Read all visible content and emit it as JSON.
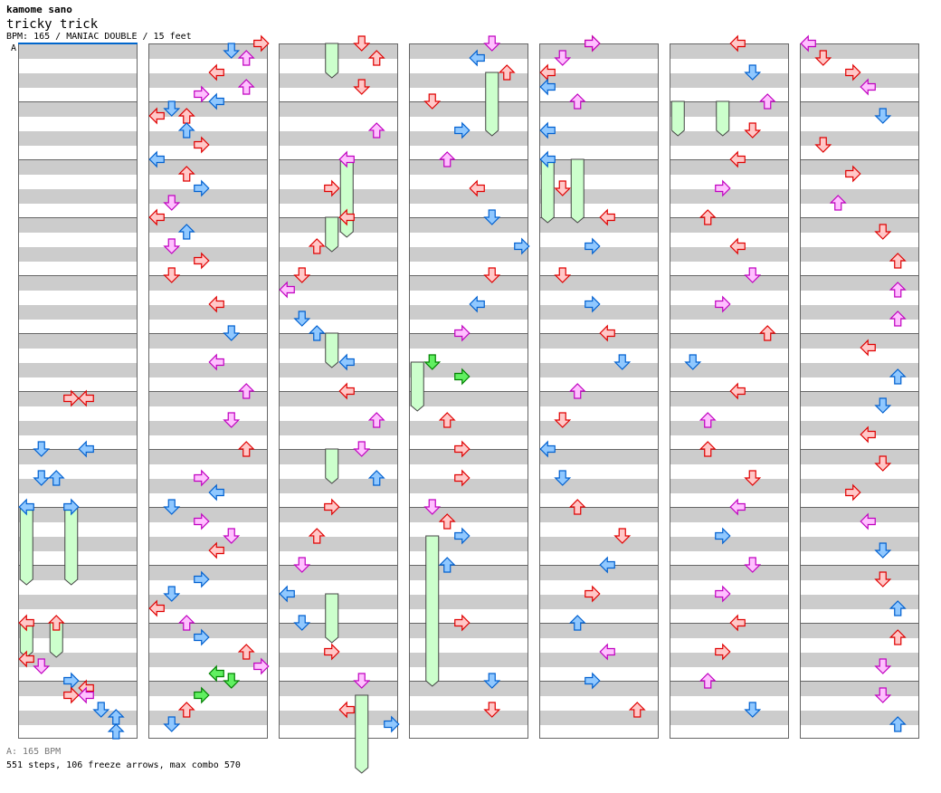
{
  "header": {
    "artist": "kamome sano",
    "title": "tricky trick",
    "info": "BPM: 165 / MANIAC DOUBLE / 15 feet",
    "section_label": "A"
  },
  "footer": {
    "bpm_note": "A: 165 BPM",
    "stats": "551 steps, 106 freeze arrows, max combo 570"
  },
  "colors": {
    "r": [
      "#ffc8c8",
      "#e00000"
    ],
    "b": [
      "#90c8ff",
      "#0060d0"
    ],
    "p": [
      "#ffc0ff",
      "#c000c0"
    ],
    "g": [
      "#60f060",
      "#008000"
    ],
    "freeze": [
      "#ccffcc",
      "#444444"
    ]
  },
  "chart_data": {
    "type": "stepchart",
    "columns": 7,
    "beats_per_column": 48,
    "lanes": [
      "L",
      "D",
      "U",
      "R",
      "L",
      "D",
      "U",
      "R"
    ],
    "notes": [
      [
        24.5,
        3,
        "r"
      ],
      [
        24.5,
        4,
        "r"
      ],
      [
        28,
        1,
        "b"
      ],
      [
        28,
        4,
        "b"
      ],
      [
        30,
        1,
        "b"
      ],
      [
        30,
        2,
        "b"
      ],
      [
        32,
        0,
        "b"
      ],
      [
        32,
        3,
        "b"
      ],
      [
        40,
        0,
        "r"
      ],
      [
        40,
        2,
        "r"
      ],
      [
        42.5,
        0,
        "r"
      ],
      [
        43,
        1,
        "p"
      ],
      [
        44,
        3,
        "b"
      ],
      [
        44.5,
        4,
        "r"
      ],
      [
        45,
        3,
        "r"
      ],
      [
        45,
        4,
        "p"
      ],
      [
        46,
        5,
        "b"
      ],
      [
        46.5,
        6,
        "b"
      ],
      [
        47.5,
        6,
        "b"
      ],
      [
        48,
        7,
        "r"
      ],
      [
        48.5,
        5,
        "b"
      ],
      [
        49,
        6,
        "p"
      ],
      [
        50,
        4,
        "r"
      ],
      [
        51,
        6,
        "p"
      ],
      [
        51.5,
        3,
        "p"
      ],
      [
        52,
        4,
        "b"
      ],
      [
        52.5,
        1,
        "b"
      ],
      [
        53,
        0,
        "r"
      ],
      [
        53,
        2,
        "r"
      ],
      [
        54,
        2,
        "b"
      ],
      [
        55,
        3,
        "r"
      ],
      [
        56,
        0,
        "b"
      ],
      [
        57,
        2,
        "r"
      ],
      [
        58,
        3,
        "b"
      ],
      [
        59,
        1,
        "p"
      ],
      [
        60,
        0,
        "r"
      ],
      [
        61,
        2,
        "b"
      ],
      [
        62,
        1,
        "p"
      ],
      [
        63,
        3,
        "r"
      ],
      [
        64,
        1,
        "r"
      ],
      [
        66,
        4,
        "r"
      ],
      [
        68,
        5,
        "b"
      ],
      [
        70,
        4,
        "p"
      ],
      [
        72,
        6,
        "p"
      ],
      [
        74,
        5,
        "p"
      ],
      [
        76,
        6,
        "r"
      ],
      [
        78,
        3,
        "p"
      ],
      [
        79,
        4,
        "b"
      ],
      [
        80,
        1,
        "b"
      ],
      [
        81,
        3,
        "p"
      ],
      [
        82,
        5,
        "p"
      ],
      [
        83,
        4,
        "r"
      ],
      [
        85,
        3,
        "b"
      ],
      [
        86,
        1,
        "b"
      ],
      [
        87,
        0,
        "r"
      ],
      [
        88,
        2,
        "p"
      ],
      [
        89,
        3,
        "b"
      ],
      [
        90,
        6,
        "r"
      ],
      [
        91,
        7,
        "p"
      ],
      [
        91.5,
        4,
        "g"
      ],
      [
        92,
        5,
        "g"
      ],
      [
        93,
        3,
        "g"
      ],
      [
        94,
        2,
        "r"
      ],
      [
        95,
        1,
        "b"
      ],
      [
        96,
        5,
        "r"
      ],
      [
        97,
        6,
        "r"
      ],
      [
        99,
        5,
        "r"
      ],
      [
        102,
        6,
        "p"
      ],
      [
        104,
        4,
        "p"
      ],
      [
        106,
        3,
        "r"
      ],
      [
        108,
        4,
        "r"
      ],
      [
        110,
        2,
        "r"
      ],
      [
        112,
        1,
        "r"
      ],
      [
        113,
        0,
        "p"
      ],
      [
        115,
        1,
        "b"
      ],
      [
        116,
        2,
        "b"
      ],
      [
        118,
        4,
        "b"
      ],
      [
        120,
        4,
        "r"
      ],
      [
        122,
        6,
        "p"
      ],
      [
        124,
        5,
        "p"
      ],
      [
        126,
        6,
        "b"
      ],
      [
        128,
        3,
        "r"
      ],
      [
        130,
        2,
        "r"
      ],
      [
        132,
        1,
        "p"
      ],
      [
        134,
        0,
        "b"
      ],
      [
        136,
        1,
        "b"
      ],
      [
        138,
        3,
        "r"
      ],
      [
        140,
        5,
        "p"
      ],
      [
        142,
        4,
        "r"
      ],
      [
        143,
        7,
        "b"
      ],
      [
        144,
        5,
        "p"
      ],
      [
        145,
        4,
        "b"
      ],
      [
        146,
        6,
        "r"
      ],
      [
        148,
        1,
        "r"
      ],
      [
        150,
        3,
        "b"
      ],
      [
        152,
        2,
        "p"
      ],
      [
        154,
        4,
        "r"
      ],
      [
        156,
        5,
        "b"
      ],
      [
        158,
        7,
        "b"
      ],
      [
        160,
        5,
        "r"
      ],
      [
        162,
        4,
        "b"
      ],
      [
        164,
        3,
        "p"
      ],
      [
        166,
        1,
        "g"
      ],
      [
        167,
        3,
        "g"
      ],
      [
        170,
        2,
        "r"
      ],
      [
        172,
        3,
        "r"
      ],
      [
        174,
        3,
        "r"
      ],
      [
        176,
        1,
        "p"
      ],
      [
        177,
        2,
        "r"
      ],
      [
        178,
        3,
        "b"
      ],
      [
        180,
        2,
        "b"
      ],
      [
        184,
        3,
        "r"
      ],
      [
        188,
        5,
        "b"
      ],
      [
        190,
        5,
        "r"
      ],
      [
        192,
        3,
        "r"
      ],
      [
        192,
        3,
        "p"
      ],
      [
        193,
        1,
        "p"
      ],
      [
        194,
        0,
        "r"
      ],
      [
        195,
        0,
        "b"
      ],
      [
        196,
        2,
        "p"
      ],
      [
        198,
        0,
        "b"
      ],
      [
        200,
        0,
        "b"
      ],
      [
        202,
        1,
        "r"
      ],
      [
        204,
        4,
        "r"
      ],
      [
        206,
        3,
        "b"
      ],
      [
        208,
        1,
        "r"
      ],
      [
        210,
        3,
        "b"
      ],
      [
        212,
        4,
        "r"
      ],
      [
        214,
        5,
        "b"
      ],
      [
        216,
        2,
        "p"
      ],
      [
        218,
        1,
        "r"
      ],
      [
        220,
        0,
        "b"
      ],
      [
        222,
        1,
        "b"
      ],
      [
        224,
        2,
        "r"
      ],
      [
        226,
        5,
        "r"
      ],
      [
        228,
        4,
        "b"
      ],
      [
        230,
        3,
        "r"
      ],
      [
        232,
        2,
        "b"
      ],
      [
        234,
        4,
        "p"
      ],
      [
        236,
        3,
        "b"
      ],
      [
        238,
        6,
        "r"
      ],
      [
        240,
        4,
        "r"
      ],
      [
        242,
        5,
        "b"
      ],
      [
        244,
        6,
        "p"
      ],
      [
        246,
        5,
        "r"
      ],
      [
        248,
        4,
        "r"
      ],
      [
        250,
        3,
        "p"
      ],
      [
        252,
        2,
        "r"
      ],
      [
        254,
        4,
        "r"
      ],
      [
        256,
        5,
        "p"
      ],
      [
        258,
        3,
        "p"
      ],
      [
        260,
        6,
        "r"
      ],
      [
        262,
        1,
        "b"
      ],
      [
        264,
        4,
        "r"
      ],
      [
        266,
        2,
        "p"
      ],
      [
        268,
        2,
        "r"
      ],
      [
        270,
        5,
        "r"
      ],
      [
        272,
        4,
        "p"
      ],
      [
        274,
        3,
        "b"
      ],
      [
        276,
        5,
        "p"
      ],
      [
        278,
        3,
        "p"
      ],
      [
        280,
        4,
        "r"
      ],
      [
        282,
        3,
        "r"
      ],
      [
        284,
        2,
        "p"
      ],
      [
        286,
        5,
        "b"
      ],
      [
        288,
        0,
        "p"
      ],
      [
        289,
        1,
        "r"
      ],
      [
        290,
        3,
        "r"
      ],
      [
        291,
        4,
        "p"
      ],
      [
        293,
        5,
        "b"
      ],
      [
        295,
        1,
        "r"
      ],
      [
        297,
        3,
        "r"
      ],
      [
        299,
        2,
        "p"
      ],
      [
        301,
        5,
        "r"
      ],
      [
        303,
        6,
        "r"
      ],
      [
        305,
        6,
        "p"
      ],
      [
        307,
        6,
        "p"
      ],
      [
        309,
        4,
        "r"
      ],
      [
        311,
        6,
        "b"
      ],
      [
        313,
        5,
        "b"
      ],
      [
        315,
        4,
        "r"
      ],
      [
        317,
        5,
        "r"
      ],
      [
        319,
        3,
        "r"
      ],
      [
        321,
        4,
        "p"
      ],
      [
        323,
        5,
        "b"
      ],
      [
        325,
        5,
        "r"
      ],
      [
        327,
        6,
        "b"
      ],
      [
        329,
        6,
        "r"
      ],
      [
        331,
        5,
        "p"
      ],
      [
        333,
        5,
        "p"
      ],
      [
        335,
        6,
        "b"
      ],
      [
        336,
        6,
        "r"
      ],
      [
        338,
        4,
        "r"
      ],
      [
        340,
        2,
        "b"
      ],
      [
        342,
        1,
        "p"
      ],
      [
        344,
        2,
        "p"
      ],
      [
        345,
        1,
        "p"
      ],
      [
        347,
        3,
        "p"
      ],
      [
        349,
        4,
        "r"
      ],
      [
        351,
        1,
        "b"
      ],
      [
        353,
        2,
        "b"
      ],
      [
        355,
        3,
        "r"
      ],
      [
        357,
        3,
        "r"
      ],
      [
        359,
        4,
        "r"
      ],
      [
        361,
        5,
        "b"
      ],
      [
        363,
        6,
        "r"
      ],
      [
        365,
        4,
        "r"
      ],
      [
        367,
        5,
        "b"
      ],
      [
        369,
        6,
        "p"
      ],
      [
        371,
        5,
        "r"
      ],
      [
        373,
        4,
        "b"
      ],
      [
        375,
        3,
        "p"
      ],
      [
        377,
        2,
        "r"
      ],
      [
        379,
        4,
        "b"
      ],
      [
        381,
        3,
        "r"
      ],
      [
        383,
        4,
        "b"
      ]
    ],
    "freezes": [
      [
        32,
        0,
        37
      ],
      [
        32,
        3,
        37
      ],
      [
        40,
        0,
        42
      ],
      [
        40,
        2,
        42
      ],
      [
        96,
        3,
        98
      ],
      [
        108,
        3,
        110
      ],
      [
        116,
        3,
        118
      ],
      [
        124,
        3,
        126
      ],
      [
        104,
        4,
        109
      ],
      [
        134,
        3,
        137
      ],
      [
        141,
        5,
        146
      ],
      [
        146,
        5,
        150
      ],
      [
        200,
        0,
        204
      ],
      [
        200,
        2,
        204
      ],
      [
        166,
        0,
        169
      ],
      [
        178,
        1,
        188
      ],
      [
        244,
        0,
        246
      ],
      [
        244,
        3,
        246
      ],
      [
        336,
        1,
        340
      ],
      [
        336,
        3,
        340
      ],
      [
        384,
        6,
        388
      ],
      [
        390,
        4,
        395
      ]
    ]
  }
}
